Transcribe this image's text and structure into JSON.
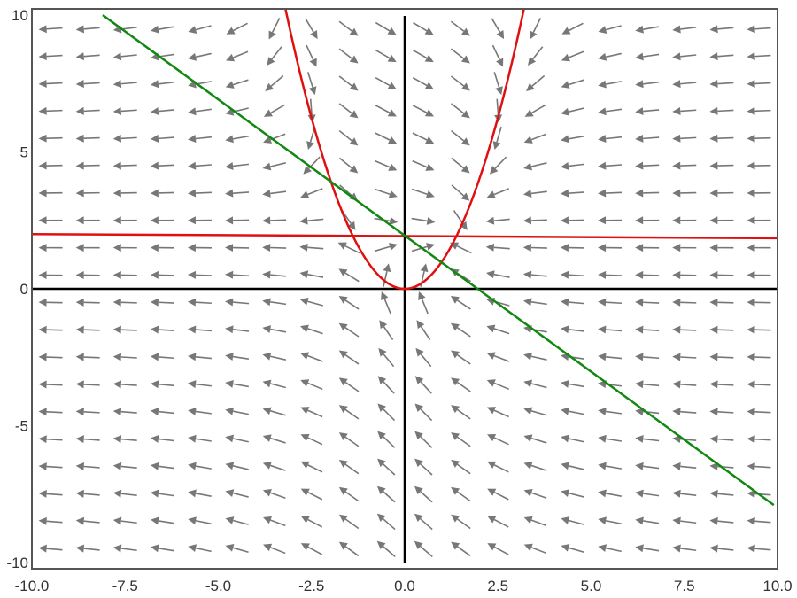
{
  "chart_data": {
    "type": "vector-field",
    "xlim": [
      -10,
      10
    ],
    "ylim": [
      -10,
      10
    ],
    "x_ticks": [
      {
        "value": -10,
        "label": "-10.0"
      },
      {
        "value": -7.5,
        "label": "-7.5"
      },
      {
        "value": -5,
        "label": "-5.0"
      },
      {
        "value": -2.5,
        "label": "-2.5"
      },
      {
        "value": 0,
        "label": "0.0"
      },
      {
        "value": 2.5,
        "label": "2.5"
      },
      {
        "value": 5,
        "label": "5.0"
      },
      {
        "value": 7.5,
        "label": "7.5"
      },
      {
        "value": 10,
        "label": "10.0"
      }
    ],
    "y_ticks": [
      {
        "value": -10,
        "label": "-10"
      },
      {
        "value": -5,
        "label": "-5"
      },
      {
        "value": 0,
        "label": "0"
      },
      {
        "value": 5,
        "label": "5"
      },
      {
        "value": 10,
        "label": "10"
      }
    ],
    "field": {
      "description_of_vector_field": "",
      "dx": "y - x^2",
      "dy": "2 - y",
      "grid_x": {
        "start": -9.5,
        "end": 9.5,
        "count": 20
      },
      "grid_y": {
        "start": -9.5,
        "end": 9.5,
        "count": 20
      },
      "color": "#777777"
    },
    "curves": [
      {
        "kind": "parabola",
        "expression": "y = x^2",
        "x_range": [
          -3.2,
          3.2
        ],
        "color": "#e01010"
      },
      {
        "kind": "line",
        "points": [
          [
            -10,
            2.0
          ],
          [
            10,
            1.85
          ]
        ],
        "color": "#e01010"
      },
      {
        "kind": "line",
        "points": [
          [
            -8.1,
            10
          ],
          [
            9.9,
            -7.9
          ]
        ],
        "color": "#118811"
      }
    ],
    "axes_color": "#000000",
    "frame_color": "#555555"
  }
}
